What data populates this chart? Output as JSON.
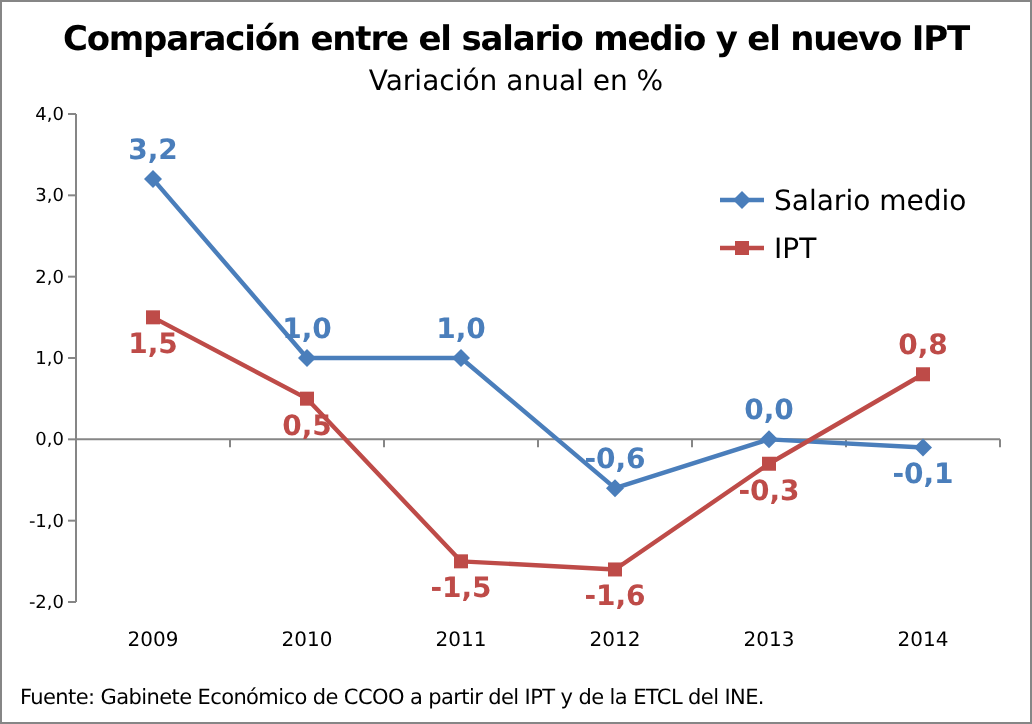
{
  "chart_data": {
    "type": "line",
    "title": "Comparación entre el salario medio y el nuevo IPT",
    "subtitle": "Variación anual en %",
    "categories": [
      "2009",
      "2010",
      "2011",
      "2012",
      "2013",
      "2014"
    ],
    "series": [
      {
        "name": "Salario medio",
        "color": "#4a7ebb",
        "marker": "diamond",
        "values": [
          3.2,
          1.0,
          1.0,
          -0.6,
          0.0,
          -0.1
        ],
        "value_labels": [
          "3,2",
          "1,0",
          "1,0",
          "-0,6",
          "0,0",
          "-0,1"
        ]
      },
      {
        "name": "IPT",
        "color": "#be4b48",
        "marker": "square",
        "values": [
          1.5,
          0.5,
          -1.5,
          -1.6,
          -0.3,
          0.8
        ],
        "value_labels": [
          "1,5",
          "0,5",
          "-1,5",
          "-1,6",
          "-0,3",
          "0,8"
        ]
      }
    ],
    "ylim": [
      -2,
      4
    ],
    "yticks": [
      {
        "value": -2,
        "label": "-2,0"
      },
      {
        "value": -1,
        "label": "-1,0"
      },
      {
        "value": 0,
        "label": "0,0"
      },
      {
        "value": 1,
        "label": "1,0"
      },
      {
        "value": 2,
        "label": "2,0"
      },
      {
        "value": 3,
        "label": "3,0"
      },
      {
        "value": 4,
        "label": "4,0"
      }
    ],
    "legend": "top right",
    "annotations": [
      "Fuente: Gabinete Económico de CCOO a partir del IPT y de la ETCL del INE."
    ]
  }
}
